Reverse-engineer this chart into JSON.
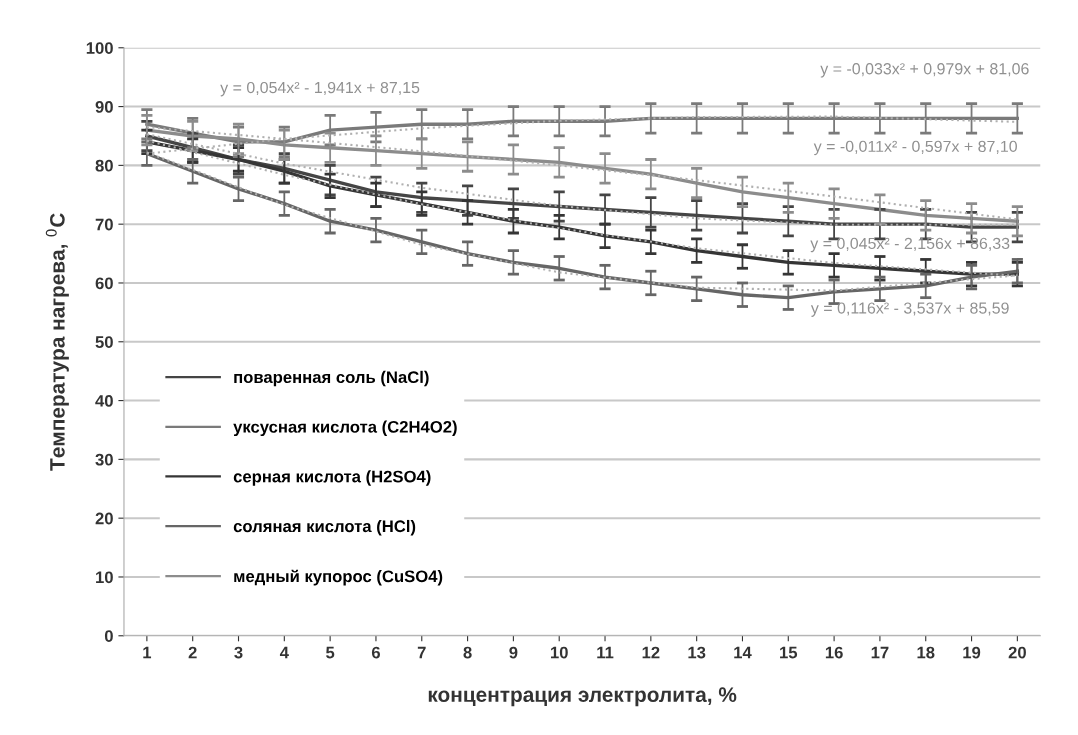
{
  "chart_data": {
    "type": "line",
    "xlabel": "концентрация электролита, %",
    "ylabel": "Температура нагрева, $^{0}$C",
    "x": [
      1,
      2,
      3,
      4,
      5,
      6,
      7,
      8,
      9,
      10,
      11,
      12,
      13,
      14,
      15,
      16,
      17,
      18,
      19,
      20
    ],
    "xlim": [
      0.5,
      20.5
    ],
    "xticks": [
      1,
      2,
      3,
      4,
      5,
      6,
      7,
      8,
      9,
      10,
      11,
      12,
      13,
      14,
      15,
      16,
      17,
      18,
      19,
      20
    ],
    "ylim": [
      0,
      100
    ],
    "yticks": [
      0,
      10,
      20,
      30,
      40,
      50,
      60,
      70,
      80,
      90,
      100
    ],
    "grid": "y",
    "legend": "bottom left",
    "line_style": "solid",
    "marker": "none",
    "series": [
      {
        "name": "поваренная соль (NaCl)",
        "color": "#454545",
        "errors": [
          2.5,
          2.5,
          2.5,
          2.5,
          2.5,
          2.5,
          2.5,
          2.5,
          2.5,
          2.5,
          2.5,
          2.5,
          2.5,
          2.5,
          2.5,
          2.5,
          2.5,
          2.5,
          2.5,
          2.5
        ],
        "values": [
          85,
          83,
          81,
          79.5,
          77.5,
          75.5,
          74.5,
          74,
          73.5,
          73,
          72.5,
          72,
          71.5,
          71,
          70.5,
          70,
          70,
          70,
          69.5,
          69.5
        ]
      },
      {
        "name": "уксусная кислота (C2H4O2)",
        "color": "#7a7a7a",
        "errors": [
          2.5,
          2.5,
          2.5,
          2.5,
          2.5,
          2.5,
          2.5,
          2.5,
          2.5,
          2.5,
          2.5,
          2.5,
          2.5,
          2.5,
          2.5,
          2.5,
          2.5,
          2.5,
          2.5,
          2.5
        ],
        "values": [
          87,
          85.5,
          84,
          84,
          86,
          86.5,
          87,
          87,
          87.5,
          87.5,
          87.5,
          88,
          88,
          88,
          88,
          88,
          88,
          88,
          88,
          88
        ]
      },
      {
        "name": "серная кислота (H2SO4)",
        "color": "#353535",
        "errors": [
          2,
          2,
          2,
          2,
          2,
          2,
          2,
          2,
          2,
          2,
          2,
          2,
          2,
          2,
          2,
          2,
          2,
          2,
          2,
          2
        ],
        "values": [
          84,
          82.5,
          81,
          79,
          76.5,
          75,
          73.5,
          72,
          70.5,
          69.5,
          68,
          67,
          65.5,
          64.5,
          63.5,
          63,
          62.5,
          62,
          61.5,
          61.5
        ]
      },
      {
        "name": "соляная кислота (HCl)",
        "color": "#666666",
        "errors": [
          2,
          2,
          2,
          2,
          2,
          2,
          2,
          2,
          2,
          2,
          2,
          2,
          2,
          2,
          2,
          2,
          2,
          2,
          2,
          2
        ],
        "values": [
          82,
          79,
          76,
          73.5,
          70.5,
          69,
          67,
          65,
          63.5,
          62.5,
          61,
          60,
          59,
          58,
          57.5,
          58.5,
          59,
          59.5,
          61,
          62
        ]
      },
      {
        "name": "медный купорос (CuSO4)",
        "color": "#8c8c8c",
        "errors": [
          2.5,
          2.5,
          2.5,
          2.5,
          2.5,
          2.5,
          2.5,
          2.5,
          2.5,
          2.5,
          2.5,
          2.5,
          2.5,
          2.5,
          2.5,
          2.5,
          2.5,
          2.5,
          2.5,
          2.5
        ],
        "values": [
          86,
          85,
          84.5,
          83.5,
          83,
          82.5,
          82,
          81.5,
          81,
          80.5,
          79.5,
          78.5,
          77,
          75.5,
          74.5,
          73.5,
          72.5,
          71.5,
          71,
          70.5
        ]
      },
      {
        "type": "line",
        "line_style": "dotted",
        "color": "#b0b0b0",
        "x": [
          1,
          4,
          7,
          10,
          13,
          16,
          20
        ],
        "values": [
          82.0,
          84.5,
          86.3,
          87.6,
          88.2,
          88.3,
          87.4
        ]
      },
      {
        "type": "line",
        "line_style": "dotted",
        "color": "#b0b0b0",
        "x": [
          1,
          4,
          7,
          10,
          13,
          16,
          20
        ],
        "values": [
          86.5,
          84.5,
          82.4,
          80.0,
          77.5,
          74.7,
          70.8
        ]
      },
      {
        "type": "line",
        "line_style": "dotted",
        "color": "#b0b0b0",
        "x": [
          1,
          4,
          7,
          10,
          13,
          16,
          20
        ],
        "values": [
          85.3,
          80.3,
          76.2,
          73.1,
          71.0,
          69.9,
          69.9
        ]
      },
      {
        "type": "line",
        "line_style": "dotted",
        "color": "#b0b0b0",
        "x": [
          1,
          4,
          7,
          10,
          13,
          16,
          20
        ],
        "values": [
          84.2,
          78.4,
          73.4,
          69.3,
          65.9,
          63.4,
          61.2
        ]
      },
      {
        "type": "line",
        "line_style": "dotted",
        "color": "#b0b0b0",
        "x": [
          1,
          4,
          7,
          10,
          13,
          16,
          20
        ],
        "values": [
          82.2,
          73.3,
          66.5,
          61.8,
          59.2,
          58.7,
          61.3
        ]
      }
    ],
    "annotations": [
      "y = -0,033x² + 0,979x + 81,06",
      "y = -0,011x² - 0,597x + 87,10",
      "y = 0,054x² - 1,941x + 87,15",
      "y = 0,045x² - 2,156x + 86,33",
      "y = 0,116x² - 3,537x + 85,59"
    ]
  }
}
